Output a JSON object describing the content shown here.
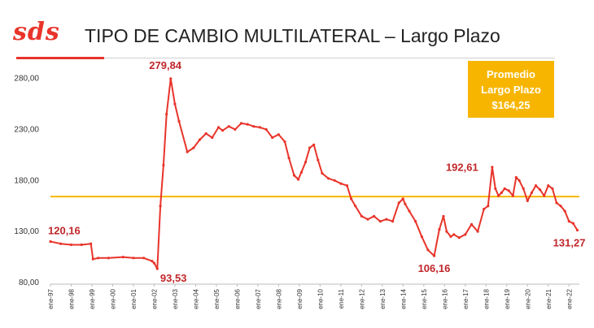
{
  "header": {
    "logo_text": "sds",
    "title": "TIPO DE CAMBIO MULTILATERAL – Largo Plazo"
  },
  "average_box": {
    "line1": "Promedio",
    "line2": "Largo Plazo",
    "line3": "$164,25"
  },
  "colors": {
    "series": "#e8342a",
    "average_line": "#f7b500",
    "annotation": "#c0262a",
    "logo": "#e8342a"
  },
  "chart_data": {
    "type": "line",
    "title": "TIPO DE CAMBIO MULTILATERAL – Largo Plazo",
    "xlabel": "",
    "ylabel": "",
    "ylim": [
      80,
      290
    ],
    "xlim": [
      1997.0,
      2022.5
    ],
    "yticks": [
      80,
      130,
      180,
      230,
      280
    ],
    "ytick_labels": [
      "80,00",
      "130,00",
      "180,00",
      "230,00",
      "280,00"
    ],
    "xtick_labels": [
      "ene-97",
      "ene-98",
      "ene-99",
      "ene-00",
      "ene-01",
      "ene-02",
      "ene-03",
      "ene-04",
      "ene-05",
      "ene-06",
      "ene-07",
      "ene-08",
      "ene-09",
      "ene-10",
      "ene-11",
      "ene-12",
      "ene-13",
      "ene-14",
      "ene-15",
      "ene-16",
      "ene-17",
      "ene-18",
      "ene-19",
      "ene-20",
      "ene-21",
      "ene-22"
    ],
    "grid": false,
    "average": 164.25,
    "series": [
      {
        "x": [
          1997.0,
          1997.5,
          1998.0,
          1998.5,
          1998.95,
          1999.05,
          1999.3,
          1999.8,
          2000.5,
          2001.0,
          2001.5,
          2001.9,
          2002.0,
          2002.15,
          2002.3,
          2002.45,
          2002.6,
          2002.8,
          2003.0,
          2003.2,
          2003.6,
          2003.9,
          2004.2,
          2004.5,
          2004.8,
          2005.1,
          2005.3,
          2005.6,
          2005.9,
          2006.2,
          2006.5,
          2006.8,
          2007.1,
          2007.4,
          2007.7,
          2008.0,
          2008.3,
          2008.5,
          2008.75,
          2008.95,
          2009.1,
          2009.3,
          2009.5,
          2009.7,
          2009.9,
          2010.1,
          2010.4,
          2010.7,
          2011.0,
          2011.3,
          2011.5,
          2011.7,
          2012.0,
          2012.3,
          2012.6,
          2012.9,
          2013.2,
          2013.5,
          2013.8,
          2014.0,
          2014.1,
          2014.3,
          2014.6,
          2014.9,
          2015.2,
          2015.5,
          2015.75,
          2015.95,
          2016.1,
          2016.3,
          2016.45,
          2016.7,
          2017.0,
          2017.3,
          2017.6,
          2017.9,
          2018.1,
          2018.3,
          2018.45,
          2018.6,
          2018.75,
          2018.9,
          2019.1,
          2019.3,
          2019.45,
          2019.6,
          2019.8,
          2020.0,
          2020.2,
          2020.4,
          2020.6,
          2020.8,
          2021.0,
          2021.2,
          2021.4,
          2021.6,
          2021.8,
          2022.0,
          2022.2,
          2022.4
        ],
        "y": [
          120.16,
          118,
          117,
          117,
          118,
          103,
          104,
          104,
          105,
          104,
          104,
          101,
          99,
          93.53,
          155,
          195,
          245,
          279.84,
          255,
          238,
          208,
          212,
          220,
          226,
          222,
          232,
          229,
          233,
          230,
          236,
          235,
          233,
          232,
          230,
          222,
          225,
          218,
          202,
          185,
          181,
          188,
          198,
          212,
          215,
          200,
          187,
          182,
          180,
          177,
          175,
          162,
          155,
          145,
          142,
          145,
          140,
          142,
          140,
          158,
          162,
          157,
          150,
          140,
          125,
          112,
          106.16,
          132,
          145,
          130,
          125,
          127,
          124,
          127,
          137,
          130,
          152,
          155,
          193,
          172,
          165,
          168,
          172,
          170,
          165,
          183,
          180,
          172,
          160,
          168,
          175,
          171,
          165,
          175,
          172,
          158,
          155,
          150,
          140,
          138,
          131.27
        ]
      }
    ],
    "annotations": [
      {
        "label": "120,16",
        "x": 1997.0,
        "y": 120.16
      },
      {
        "label": "279,84",
        "x": 2002.15,
        "y": 279.84
      },
      {
        "label": "93,53",
        "x": 2001.9,
        "y": 93.53
      },
      {
        "label": "106,16",
        "x": 2015.5,
        "y": 106.16
      },
      {
        "label": "192,61",
        "x": 2018.3,
        "y": 192.61
      },
      {
        "label": "131,27",
        "x": 2022.4,
        "y": 131.27
      }
    ]
  }
}
